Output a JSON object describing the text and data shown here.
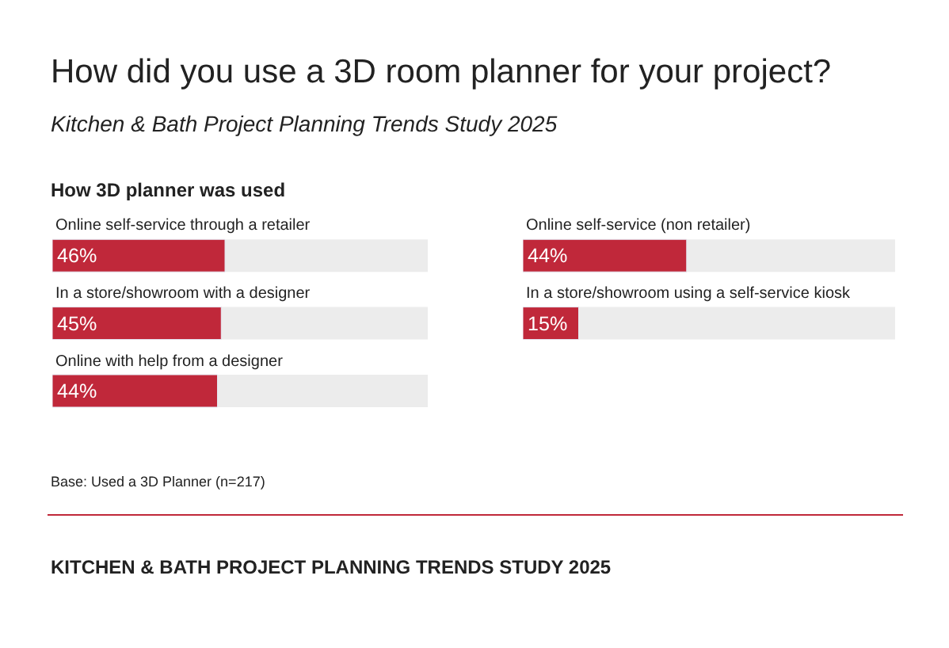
{
  "chart_data": [
    {
      "type": "bar",
      "orientation": "horizontal",
      "title": "How did you use a 3D room planner for your project?",
      "subtitle": "Kitchen & Bath Project Planning Trends Study 2025",
      "annotations": [
        "How 3D planner was used",
        "Base: Used a 3D Planner (n=217)",
        "KITCHEN & BATH PROJECT PLANNING TRENDS STUDY 2025"
      ],
      "categories": [
        "Online self-service through a retailer",
        "In a store/showroom with a designer",
        "Online with help from a designer"
      ],
      "values": [
        46,
        45,
        44
      ],
      "value_labels": [
        "46%",
        "45%",
        "44%"
      ],
      "color": "#c0283a",
      "xlim": [
        0,
        100
      ],
      "tick_labels": "y",
      "grid": false
    },
    {
      "type": "bar",
      "orientation": "horizontal",
      "categories": [
        "Online self-service (non retailer)",
        "In a store/showroom using a self-service kiosk"
      ],
      "values": [
        44,
        15
      ],
      "value_labels": [
        "44%",
        "15%"
      ],
      "color": "#c0283a",
      "xlim": [
        0,
        100
      ],
      "tick_labels": "y",
      "grid": false
    }
  ]
}
